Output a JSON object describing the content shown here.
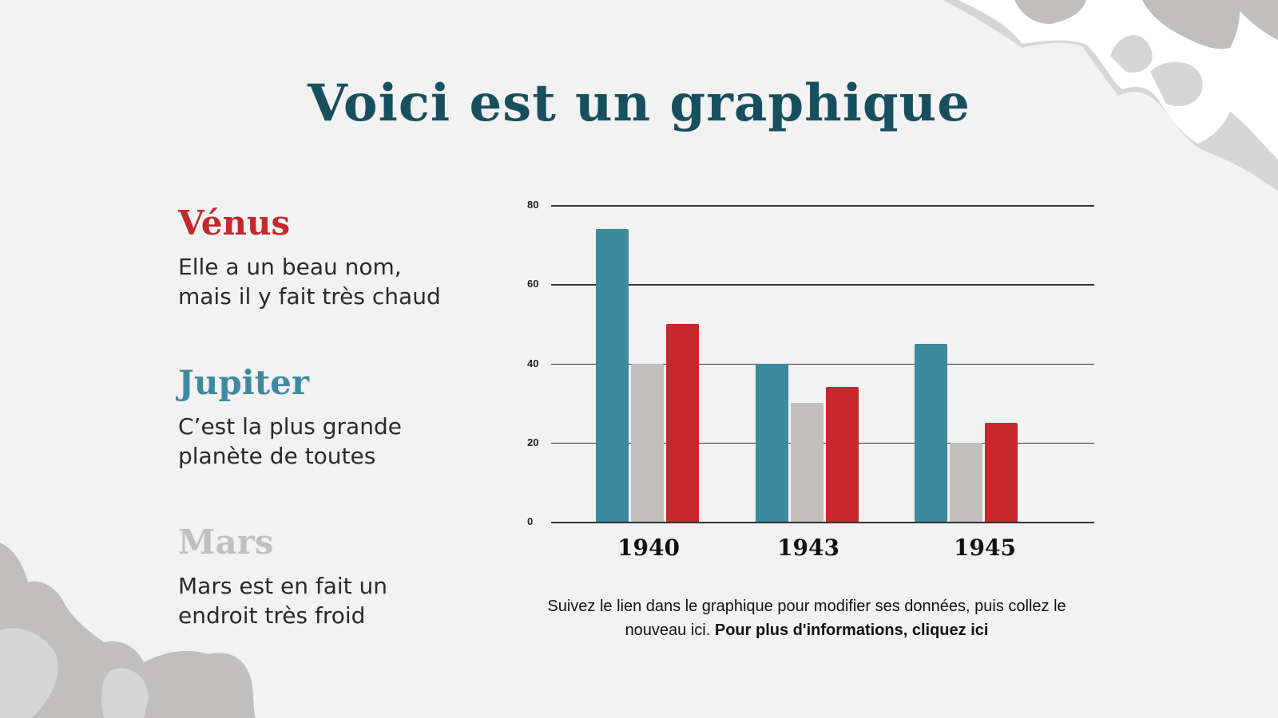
{
  "title": "Voici est un graphique",
  "planets": [
    {
      "name": "Vénus",
      "color": "#c4282b",
      "desc_line1": "Elle a un beau nom,",
      "desc_line2": "mais il y fait très chaud"
    },
    {
      "name": "Jupiter",
      "color": "#3d8a9f",
      "desc_line1": "C’est la plus grande",
      "desc_line2": "planète de toutes"
    },
    {
      "name": "Mars",
      "color": "#c2c0bf",
      "desc_line1": "Mars est en fait un",
      "desc_line2": "endroit très froid"
    }
  ],
  "note": {
    "text": "Suivez le lien dans le graphique pour modifier ses données, puis collez le nouveau ici. ",
    "link": "Pour plus d'informations, cliquez ici"
  },
  "chart_data": {
    "type": "bar",
    "title": "",
    "xlabel": "",
    "ylabel": "",
    "categories": [
      "1940",
      "1943",
      "1945"
    ],
    "series": [
      {
        "name": "Jupiter",
        "color": "#3d8a9f",
        "values": [
          74,
          40,
          45
        ]
      },
      {
        "name": "Mars",
        "color": "#c2c0bf",
        "values": [
          40,
          30,
          20
        ]
      },
      {
        "name": "Vénus",
        "color": "#c4282b",
        "values": [
          50,
          34,
          25
        ]
      }
    ],
    "ylim": [
      0,
      80
    ],
    "yticks": [
      "0",
      "20",
      "40",
      "60",
      "80"
    ],
    "grid": true,
    "legend": "none"
  }
}
